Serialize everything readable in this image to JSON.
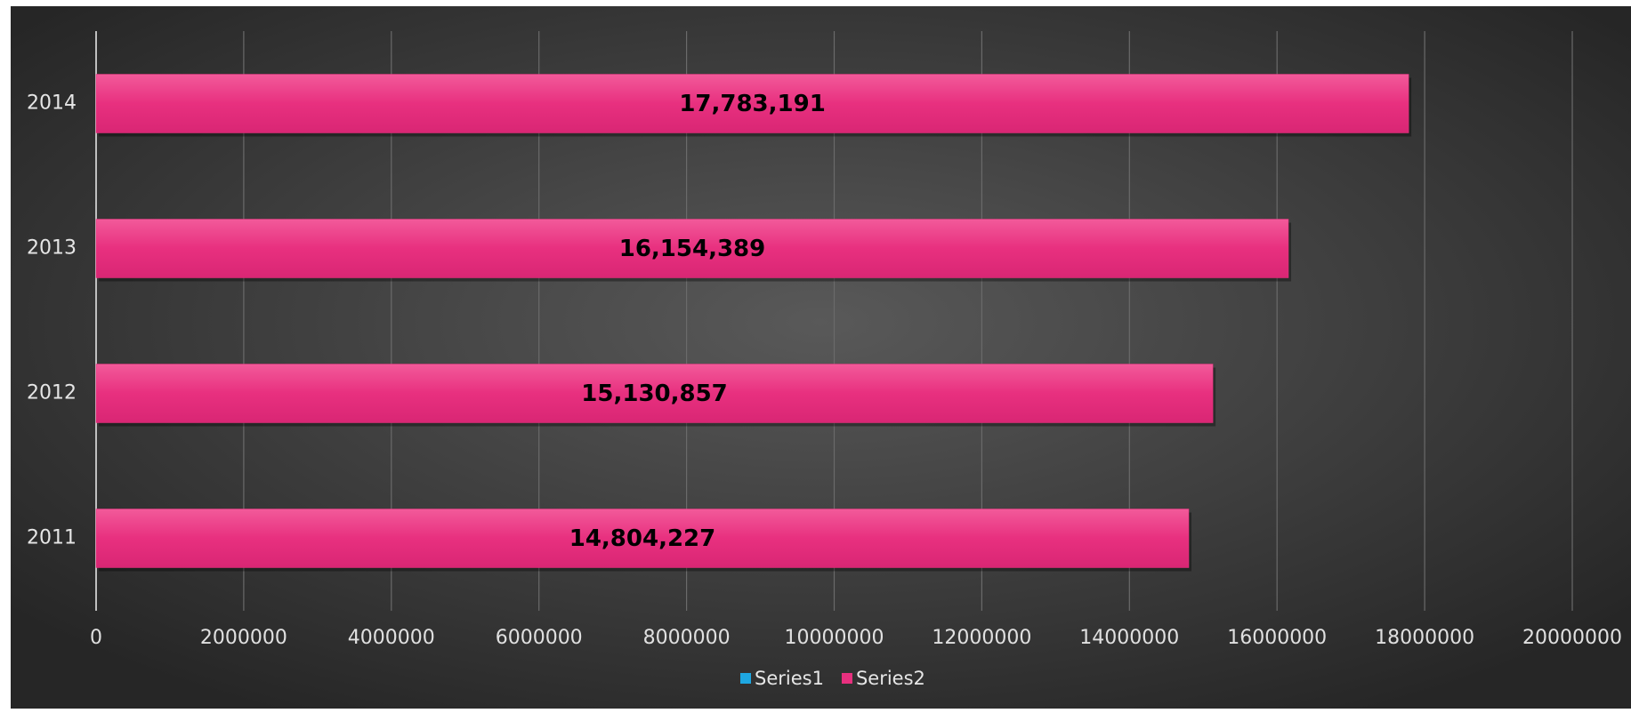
{
  "chart_data": {
    "type": "barh",
    "categories": [
      "2011",
      "2012",
      "2013",
      "2014"
    ],
    "series": [
      {
        "name": "Series1",
        "color": "#1ea7e1",
        "values": [
          null,
          null,
          null,
          null
        ]
      },
      {
        "name": "Series2",
        "color": "#e8307f",
        "values": [
          14804227,
          15130857,
          16154389,
          17783191
        ],
        "value_labels": [
          "14,804,227",
          "15,130,857",
          "16,154,389",
          "17,783,191"
        ]
      }
    ],
    "xlim": [
      0,
      20000000
    ],
    "xticks": [
      0,
      2000000,
      4000000,
      6000000,
      8000000,
      10000000,
      12000000,
      14000000,
      16000000,
      18000000,
      20000000
    ],
    "grid": true,
    "legend": "bottom"
  }
}
